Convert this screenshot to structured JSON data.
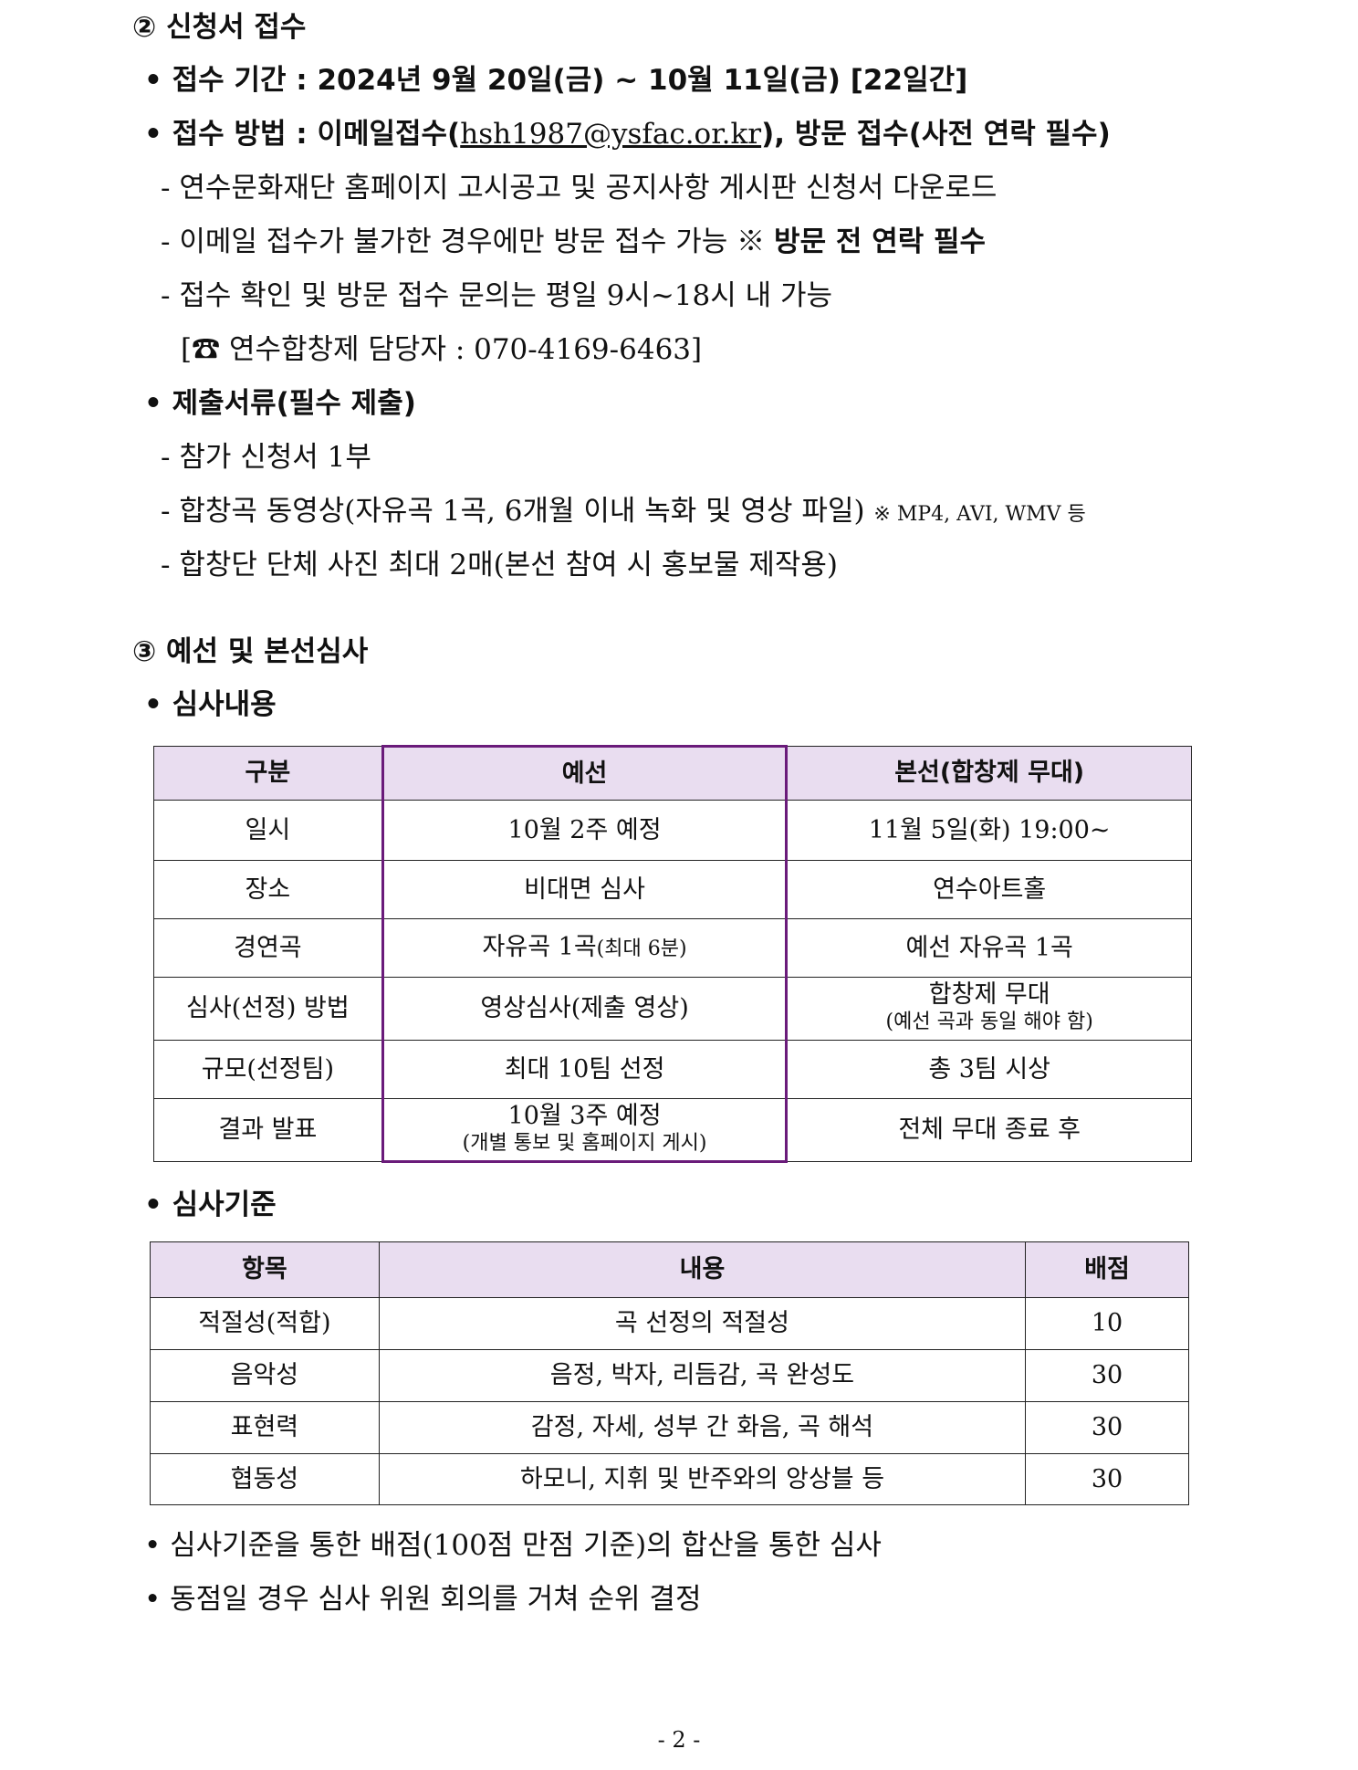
{
  "section2": {
    "heading": "② 신청서 접수",
    "period": "• 접수 기간 : 2024년 9월 20일(금) ~ 10월 11일(금) [22일간]",
    "method_prefix": "• 접수 방법 : 이메일접수(",
    "email": "hsh1987@ysfac.or.kr",
    "method_suffix": "), 방문 접수(사전 연락 필수)",
    "method_items": [
      "- 연수문화재단 홈페이지 고시공고 및 공지사항 게시판 신청서 다운로드",
      "- 이메일 접수가 불가한 경우에만 방문 접수 가능 ※ ",
      "- 접수 확인 및 방문 접수 문의는 평일 9시~18시 내 가능",
      "[☎ 연수합창제 담당자 : 070-4169-6463]"
    ],
    "visit_note_bold": "방문 전 연락 필수",
    "docs_heading": "• 제출서류(필수 제출)",
    "docs_items": [
      "- 참가 신청서 1부",
      "- 합창곡 동영상(자유곡 1곡, 6개월 이내 녹화 및 영상 파일) ",
      "- 합창단 단체 사진 최대 2매(본선 참여 시 홍보물 제작용)"
    ],
    "video_formats": "※ MP4, AVI, WMV 등"
  },
  "section3": {
    "heading": "③ 예선 및 본선심사",
    "content_heading": "• 심사내용",
    "table1": {
      "headers": [
        "구분",
        "예선",
        "본선(합창제 무대)"
      ],
      "rows": [
        [
          "일시",
          "10월 2주 예정",
          "11월 5일(화) 19:00~"
        ],
        [
          "장소",
          "비대면 심사",
          "연수아트홀"
        ],
        [
          "경연곡",
          "자유곡 1곡",
          "예선 자유곡 1곡"
        ],
        [
          "심사(선정) 방법",
          "영상심사(제출 영상)",
          "합창제 무대"
        ],
        [
          "규모(선정팀)",
          "최대 10팀 선정",
          "총 3팀 시상"
        ],
        [
          "결과 발표",
          "10월 3주 예정",
          "전체 무대 종료 후"
        ]
      ],
      "song_note": "(최대 6분)",
      "main_method_note": "(예선 곡과 동일 해야 함)",
      "result_note": "(개별 통보 및 홈페이지 게시)"
    },
    "criteria_heading": "• 심사기준",
    "table2": {
      "headers": [
        "항목",
        "내용",
        "배점"
      ],
      "rows": [
        [
          "적절성(적합)",
          "곡 선정의 적절성",
          "10"
        ],
        [
          "음악성",
          "음정, 박자, 리듬감, 곡 완성도",
          "30"
        ],
        [
          "표현력",
          "감정, 자세, 성부 간 화음, 곡 해석",
          "30"
        ],
        [
          "협동성",
          "하모니, 지휘 및 반주와의 앙상블 등",
          "30"
        ]
      ]
    },
    "notes": [
      "• 심사기준을 통한 배점(100점 만점 기준)의 합산을 통한 심사",
      "• 동점일 경우 심사 위원 회의를 거쳐 순위 결정"
    ]
  },
  "page_number": "- 2 -",
  "colors": {
    "header_bg": "#e9ddf0",
    "highlight_border": "#6a1b7a"
  }
}
